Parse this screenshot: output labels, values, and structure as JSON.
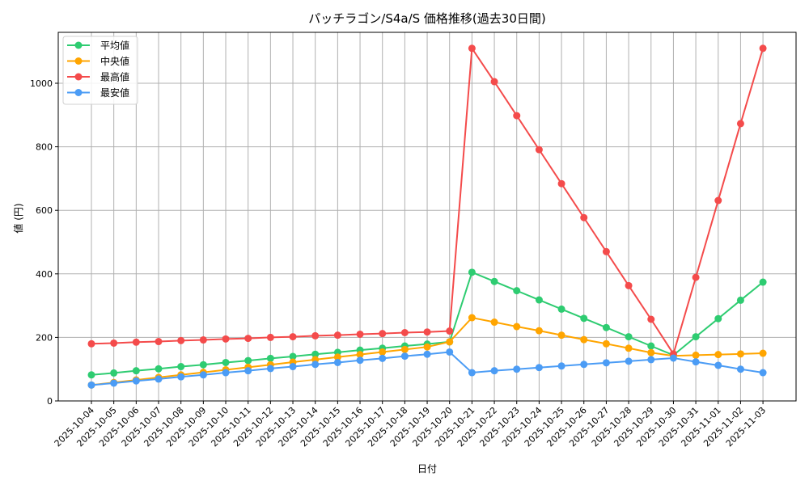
{
  "chart_data": {
    "type": "line",
    "title": "パッチラゴン/S4a/S 価格推移(過去30日間)",
    "xlabel": "日付",
    "ylabel": "値 (円)",
    "ylim": [
      0,
      1160
    ],
    "yticks": [
      0,
      200,
      400,
      600,
      800,
      1000
    ],
    "grid": true,
    "legend_position": "upper left",
    "categories": [
      "2025-10-04",
      "2025-10-05",
      "2025-10-06",
      "2025-10-07",
      "2025-10-08",
      "2025-10-09",
      "2025-10-10",
      "2025-10-11",
      "2025-10-12",
      "2025-10-13",
      "2025-10-14",
      "2025-10-15",
      "2025-10-16",
      "2025-10-17",
      "2025-10-18",
      "2025-10-19",
      "2025-10-20",
      "2025-10-21",
      "2025-10-22",
      "2025-10-23",
      "2025-10-24",
      "2025-10-25",
      "2025-10-26",
      "2025-10-27",
      "2025-10-28",
      "2025-10-29",
      "2025-10-30",
      "2025-10-31",
      "2025-11-01",
      "2025-11-02",
      "2025-11-03"
    ],
    "series": [
      {
        "name": "平均値",
        "color": "#2ecc71",
        "values": [
          82,
          88,
          95,
          101,
          108,
          114,
          121,
          127,
          134,
          140,
          147,
          153,
          160,
          166,
          173,
          179,
          186,
          405,
          376,
          347,
          318,
          289,
          260,
          231,
          202,
          173,
          144,
          202,
          259,
          317,
          374
        ]
      },
      {
        "name": "中央値",
        "color": "#ffa500",
        "values": [
          50,
          58,
          66,
          74,
          82,
          90,
          98,
          106,
          114,
          122,
          130,
          138,
          146,
          154,
          162,
          170,
          186,
          262,
          248,
          234,
          221,
          207,
          193,
          180,
          166,
          152,
          142,
          144,
          146,
          148,
          150
        ]
      },
      {
        "name": "最高値",
        "color": "#f44b4b",
        "values": [
          180,
          182,
          185,
          187,
          190,
          192,
          195,
          197,
          200,
          202,
          205,
          207,
          210,
          212,
          215,
          217,
          220,
          1110,
          1005,
          898,
          791,
          684,
          577,
          470,
          363,
          257,
          148,
          389,
          631,
          873,
          1110
        ]
      },
      {
        "name": "最安値",
        "color": "#4b9cf5",
        "values": [
          50,
          56,
          63,
          69,
          76,
          82,
          89,
          95,
          102,
          108,
          115,
          121,
          128,
          134,
          141,
          147,
          154,
          89,
          95,
          100,
          105,
          110,
          115,
          120,
          125,
          130,
          135,
          123,
          112,
          100,
          89
        ]
      }
    ]
  }
}
